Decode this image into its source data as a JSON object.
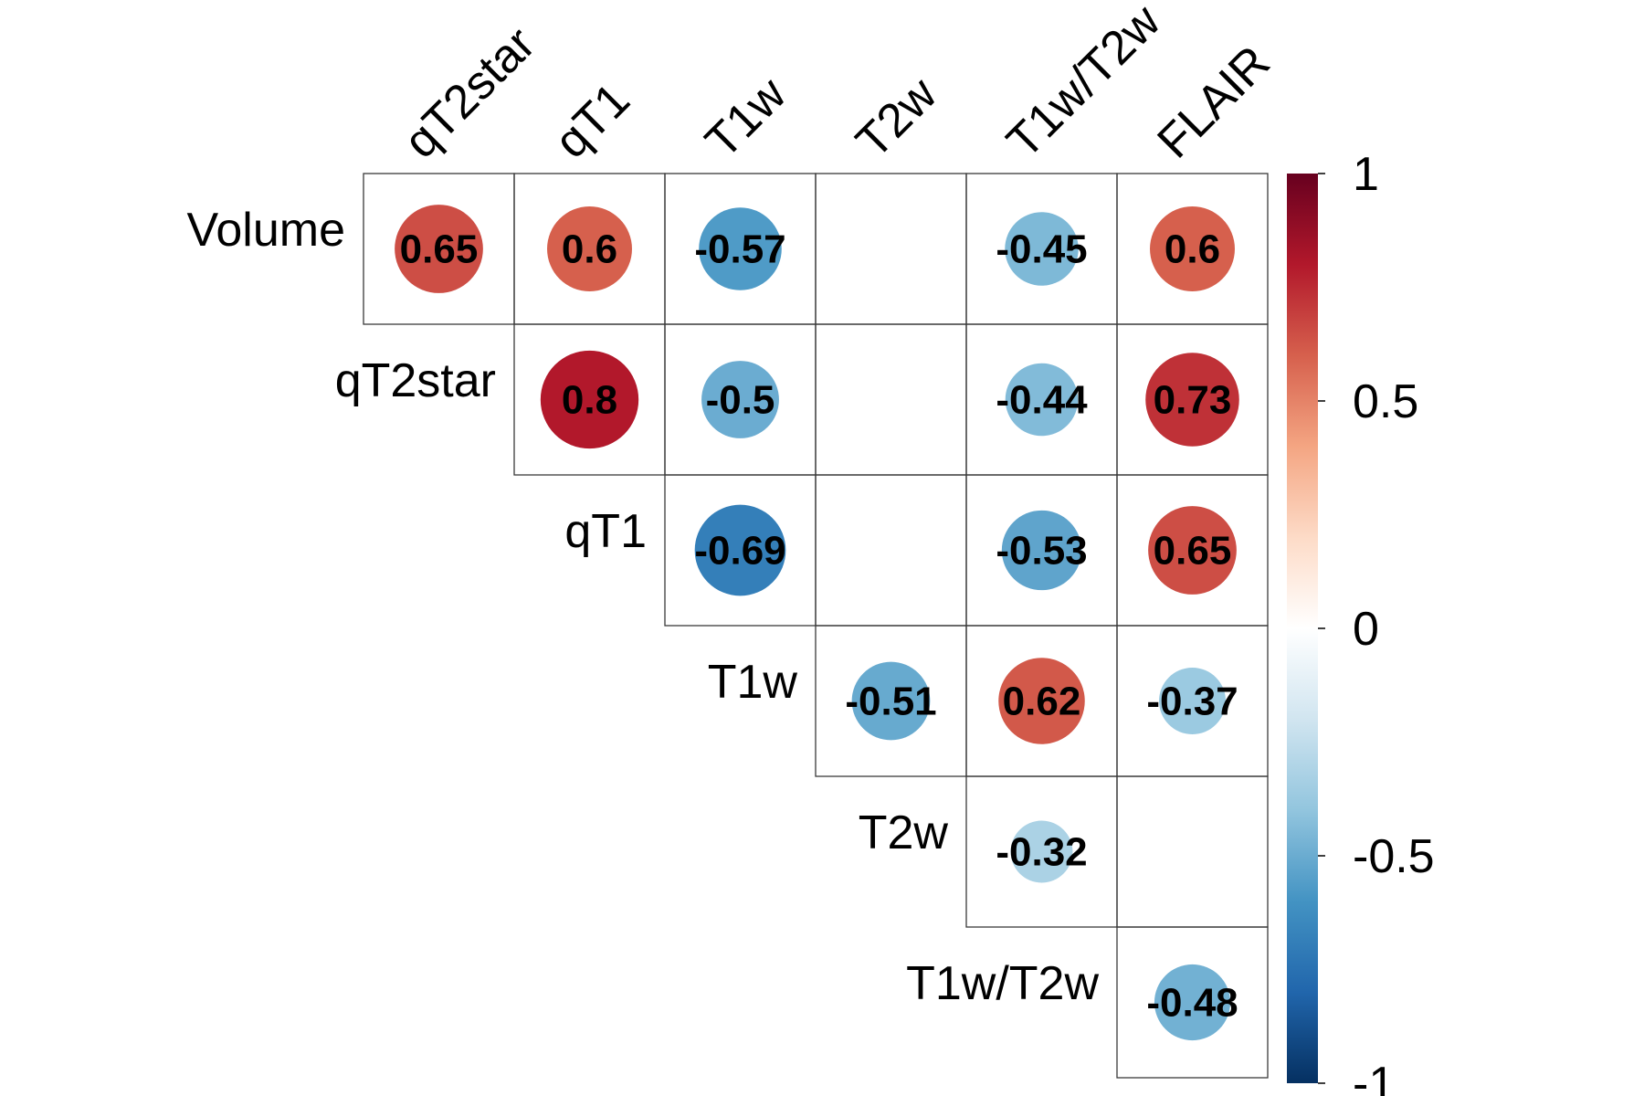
{
  "chart_data": {
    "type": "heatmap",
    "variant": "corrplot-upper-circles",
    "col_labels": [
      "qT2star",
      "qT1",
      "T1w",
      "T2w",
      "T1w/T2w",
      "FLAIR"
    ],
    "row_labels": [
      "Volume",
      "qT2star",
      "qT1",
      "T1w",
      "T2w",
      "T1w/T2w"
    ],
    "cells": [
      {
        "row": "Volume",
        "col": "qT2star",
        "value": 0.65,
        "label": "0.65"
      },
      {
        "row": "Volume",
        "col": "qT1",
        "value": 0.6,
        "label": "0.6"
      },
      {
        "row": "Volume",
        "col": "T1w",
        "value": -0.57,
        "label": "-0.57"
      },
      {
        "row": "Volume",
        "col": "T2w",
        "value": null,
        "label": ""
      },
      {
        "row": "Volume",
        "col": "T1w/T2w",
        "value": -0.45,
        "label": "-0.45"
      },
      {
        "row": "Volume",
        "col": "FLAIR",
        "value": 0.6,
        "label": "0.6"
      },
      {
        "row": "qT2star",
        "col": "qT1",
        "value": 0.8,
        "label": "0.8"
      },
      {
        "row": "qT2star",
        "col": "T1w",
        "value": -0.5,
        "label": "-0.5"
      },
      {
        "row": "qT2star",
        "col": "T2w",
        "value": null,
        "label": ""
      },
      {
        "row": "qT2star",
        "col": "T1w/T2w",
        "value": -0.44,
        "label": "-0.44"
      },
      {
        "row": "qT2star",
        "col": "FLAIR",
        "value": 0.73,
        "label": "0.73"
      },
      {
        "row": "qT1",
        "col": "T1w",
        "value": -0.69,
        "label": "-0.69"
      },
      {
        "row": "qT1",
        "col": "T2w",
        "value": null,
        "label": ""
      },
      {
        "row": "qT1",
        "col": "T1w/T2w",
        "value": -0.53,
        "label": "-0.53"
      },
      {
        "row": "qT1",
        "col": "FLAIR",
        "value": 0.65,
        "label": "0.65"
      },
      {
        "row": "T1w",
        "col": "T2w",
        "value": -0.51,
        "label": "-0.51"
      },
      {
        "row": "T1w",
        "col": "T1w/T2w",
        "value": 0.62,
        "label": "0.62"
      },
      {
        "row": "T1w",
        "col": "FLAIR",
        "value": -0.37,
        "label": "-0.37"
      },
      {
        "row": "T2w",
        "col": "T1w/T2w",
        "value": -0.32,
        "label": "-0.32"
      },
      {
        "row": "T2w",
        "col": "FLAIR",
        "value": null,
        "label": ""
      },
      {
        "row": "T1w/T2w",
        "col": "FLAIR",
        "value": -0.48,
        "label": "-0.48"
      }
    ],
    "colorbar": {
      "range": [
        -1,
        1
      ],
      "ticks": [
        {
          "value": 1,
          "label": "1"
        },
        {
          "value": 0.5,
          "label": "0.5"
        },
        {
          "value": 0,
          "label": "0"
        },
        {
          "value": -0.5,
          "label": "-0.5"
        },
        {
          "value": -1,
          "label": "-1"
        }
      ],
      "palette": [
        "#053061",
        "#2166ac",
        "#4393c3",
        "#92c5de",
        "#d1e5f0",
        "#ffffff",
        "#fddbc7",
        "#f4a582",
        "#d6604d",
        "#b2182b",
        "#67001f"
      ]
    },
    "grid": true,
    "legend_placement": "right"
  }
}
